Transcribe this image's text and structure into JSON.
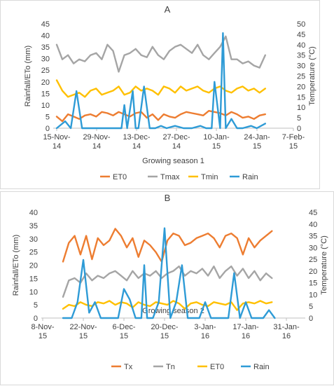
{
  "figure": {
    "panels": [
      {
        "label": "A"
      },
      {
        "label": "B"
      }
    ]
  },
  "chart_data": [
    {
      "panel": "A",
      "type": "line",
      "title": "",
      "xlabel": "Growing season 1",
      "ylabel": "Rainfall/ETo (mm)",
      "y2label": "Temperature (°C)",
      "x_ticks": [
        "15-Nov-14",
        "29-Nov-14",
        "13-Dec-14",
        "27-Dec-14",
        "10-Jan-15",
        "24-Jan-15",
        "7-Feb-15"
      ],
      "xlim": [
        "2014-11-08",
        "2015-02-14"
      ],
      "ylim": [
        0,
        45
      ],
      "y_ticks": [
        0,
        5,
        10,
        15,
        20,
        25,
        30,
        35,
        40,
        45
      ],
      "y2lim": [
        0,
        50
      ],
      "y2_ticks": [
        0,
        5,
        10,
        15,
        20,
        25,
        30,
        35,
        40,
        45,
        50
      ],
      "grid": false,
      "legend": "bottom",
      "series": [
        {
          "name": "ET0",
          "axis": "left",
          "color": "#ED7D31",
          "x": [
            "2014-11-15",
            "2014-11-17",
            "2014-11-19",
            "2014-11-21",
            "2014-11-23",
            "2014-11-25",
            "2014-11-27",
            "2014-11-29",
            "2014-12-01",
            "2014-12-03",
            "2014-12-05",
            "2014-12-07",
            "2014-12-09",
            "2014-12-11",
            "2014-12-13",
            "2014-12-15",
            "2014-12-17",
            "2014-12-19",
            "2014-12-21",
            "2014-12-23",
            "2014-12-25",
            "2014-12-27",
            "2014-12-29",
            "2014-12-31",
            "2015-01-02",
            "2015-01-04",
            "2015-01-06",
            "2015-01-08",
            "2015-01-10",
            "2015-01-12",
            "2015-01-14",
            "2015-01-16",
            "2015-01-18",
            "2015-01-20",
            "2015-01-22",
            "2015-01-24",
            "2015-01-26",
            "2015-01-28"
          ],
          "values": [
            5.0,
            3.0,
            6.0,
            5.0,
            4.0,
            5.5,
            6.0,
            5.0,
            7.0,
            6.5,
            5.5,
            7.0,
            6.0,
            5.0,
            6.5,
            7.0,
            4.5,
            6.0,
            3.5,
            6.0,
            5.0,
            4.5,
            6.0,
            7.0,
            6.5,
            6.0,
            5.5,
            7.5,
            7.0,
            6.5,
            5.5,
            7.0,
            6.0,
            4.5,
            5.0,
            4.0,
            5.5,
            6.0
          ]
        },
        {
          "name": "Tmax",
          "axis": "right",
          "color": "#A5A5A5",
          "x": [
            "2014-11-15",
            "2014-11-17",
            "2014-11-19",
            "2014-11-21",
            "2014-11-23",
            "2014-11-25",
            "2014-11-27",
            "2014-11-29",
            "2014-12-01",
            "2014-12-03",
            "2014-12-05",
            "2014-12-07",
            "2014-12-09",
            "2014-12-11",
            "2014-12-13",
            "2014-12-15",
            "2014-12-17",
            "2014-12-19",
            "2014-12-21",
            "2014-12-23",
            "2014-12-25",
            "2014-12-27",
            "2014-12-29",
            "2014-12-31",
            "2015-01-02",
            "2015-01-04",
            "2015-01-06",
            "2015-01-08",
            "2015-01-10",
            "2015-01-12",
            "2015-01-14",
            "2015-01-16",
            "2015-01-18",
            "2015-01-20",
            "2015-01-22",
            "2015-01-24",
            "2015-01-26",
            "2015-01-28"
          ],
          "values": [
            40,
            33,
            35,
            31,
            33,
            32,
            35,
            36,
            33,
            40,
            37,
            27,
            35,
            36,
            38,
            35,
            34,
            39,
            35,
            33,
            37,
            39,
            40,
            38,
            36,
            40,
            35,
            33,
            36,
            39,
            44,
            33,
            33,
            31,
            32,
            30,
            29,
            35
          ]
        },
        {
          "name": "Tmin",
          "axis": "right",
          "color": "#FFC000",
          "x": [
            "2014-11-15",
            "2014-11-17",
            "2014-11-19",
            "2014-11-21",
            "2014-11-23",
            "2014-11-25",
            "2014-11-27",
            "2014-11-29",
            "2014-12-01",
            "2014-12-03",
            "2014-12-05",
            "2014-12-07",
            "2014-12-09",
            "2014-12-11",
            "2014-12-13",
            "2014-12-15",
            "2014-12-17",
            "2014-12-19",
            "2014-12-21",
            "2014-12-23",
            "2014-12-25",
            "2014-12-27",
            "2014-12-29",
            "2014-12-31",
            "2015-01-02",
            "2015-01-04",
            "2015-01-06",
            "2015-01-08",
            "2015-01-10",
            "2015-01-12",
            "2015-01-14",
            "2015-01-16",
            "2015-01-18",
            "2015-01-20",
            "2015-01-22",
            "2015-01-24",
            "2015-01-26",
            "2015-01-28"
          ],
          "values": [
            23,
            18,
            15,
            16,
            17,
            15,
            18,
            19,
            16,
            17,
            18,
            20,
            16,
            17,
            20,
            18,
            19,
            18,
            16,
            20,
            19,
            17,
            20,
            18,
            19,
            20,
            18,
            17,
            19,
            20,
            18,
            17,
            19,
            20,
            18,
            19,
            17,
            19
          ]
        },
        {
          "name": "Rain",
          "axis": "left",
          "color": "#2E9BD6",
          "x": [
            "2014-11-15",
            "2014-11-18",
            "2014-11-20",
            "2014-11-22",
            "2014-11-24",
            "2014-11-26",
            "2014-11-28",
            "2014-11-30",
            "2014-12-02",
            "2014-12-04",
            "2014-12-06",
            "2014-12-08",
            "2014-12-09",
            "2014-12-10",
            "2014-12-12",
            "2014-12-13",
            "2014-12-14",
            "2014-12-16",
            "2014-12-18",
            "2014-12-19",
            "2014-12-20",
            "2014-12-22",
            "2014-12-24",
            "2014-12-27",
            "2014-12-30",
            "2015-01-02",
            "2015-01-05",
            "2015-01-07",
            "2015-01-09",
            "2015-01-10",
            "2015-01-12",
            "2015-01-13",
            "2015-01-14",
            "2015-01-16",
            "2015-01-18",
            "2015-01-20",
            "2015-01-23",
            "2015-01-25",
            "2015-01-28"
          ],
          "values": [
            0,
            3,
            0,
            16,
            0,
            0,
            0,
            0,
            0,
            0,
            0,
            0,
            10,
            0,
            16,
            0,
            0,
            18,
            0,
            0,
            0,
            1,
            0,
            1,
            0,
            0,
            1,
            0,
            0,
            20,
            0,
            41,
            0,
            4,
            0,
            0,
            1,
            0,
            2
          ]
        }
      ]
    },
    {
      "panel": "B",
      "type": "line",
      "title": "",
      "xlabel": "Growing season 2",
      "ylabel": "Rainfall/ETo (mm)",
      "y2label": "Temperature (°C)",
      "x_ticks": [
        "8-Nov-15",
        "22-Nov-15",
        "6-Dec-15",
        "20-Dec-15",
        "3-Jan-16",
        "17-Jan-16",
        "31-Jan-16"
      ],
      "xlim": [
        "2015-11-01",
        "2016-02-07"
      ],
      "ylim": [
        0,
        40
      ],
      "y_ticks": [
        0,
        5,
        10,
        15,
        20,
        25,
        30,
        35,
        40
      ],
      "y2lim": [
        0,
        45
      ],
      "y2_ticks": [
        0,
        5,
        10,
        15,
        20,
        25,
        30,
        35,
        40,
        45
      ],
      "grid": false,
      "legend": "bottom",
      "series": [
        {
          "name": "Tx",
          "axis": "right",
          "color": "#ED7D31",
          "x": [
            "2015-11-15",
            "2015-11-17",
            "2015-11-19",
            "2015-11-21",
            "2015-11-23",
            "2015-11-25",
            "2015-11-27",
            "2015-11-29",
            "2015-12-01",
            "2015-12-03",
            "2015-12-05",
            "2015-12-07",
            "2015-12-09",
            "2015-12-11",
            "2015-12-13",
            "2015-12-15",
            "2015-12-17",
            "2015-12-19",
            "2015-12-21",
            "2015-12-23",
            "2015-12-25",
            "2015-12-27",
            "2015-12-29",
            "2015-12-31",
            "2016-01-02",
            "2016-01-04",
            "2016-01-06",
            "2016-01-08",
            "2016-01-10",
            "2016-01-12",
            "2016-01-14",
            "2016-01-16",
            "2016-01-18",
            "2016-01-20",
            "2016-01-22",
            "2016-01-24",
            "2016-01-26"
          ],
          "values": [
            24,
            32,
            35,
            27,
            35,
            25,
            34,
            31,
            33,
            38,
            35,
            30,
            34,
            26,
            33,
            31,
            28,
            24,
            33,
            36,
            35,
            31,
            32,
            34,
            35,
            36,
            34,
            30,
            35,
            36,
            34,
            27,
            34,
            30,
            33,
            35,
            37
          ]
        },
        {
          "name": "Tn",
          "axis": "right",
          "color": "#A5A5A5",
          "x": [
            "2015-11-15",
            "2015-11-17",
            "2015-11-19",
            "2015-11-21",
            "2015-11-23",
            "2015-11-25",
            "2015-11-27",
            "2015-11-29",
            "2015-12-01",
            "2015-12-03",
            "2015-12-05",
            "2015-12-07",
            "2015-12-09",
            "2015-12-11",
            "2015-12-13",
            "2015-12-15",
            "2015-12-17",
            "2015-12-19",
            "2015-12-21",
            "2015-12-23",
            "2015-12-25",
            "2015-12-27",
            "2015-12-29",
            "2015-12-31",
            "2016-01-02",
            "2016-01-04",
            "2016-01-06",
            "2016-01-08",
            "2016-01-10",
            "2016-01-12",
            "2016-01-14",
            "2016-01-16",
            "2016-01-18",
            "2016-01-20",
            "2016-01-22",
            "2016-01-24",
            "2016-01-26"
          ],
          "values": [
            9,
            16,
            17,
            15,
            19,
            16,
            18,
            17,
            19,
            20,
            18,
            16,
            20,
            17,
            19,
            18,
            20,
            17,
            19,
            20,
            22,
            18,
            20,
            19,
            21,
            18,
            22,
            17,
            20,
            22,
            18,
            21,
            17,
            20,
            16,
            19,
            17
          ]
        },
        {
          "name": "ET0",
          "axis": "left",
          "color": "#FFC000",
          "x": [
            "2015-11-15",
            "2015-11-17",
            "2015-11-19",
            "2015-11-21",
            "2015-11-23",
            "2015-11-25",
            "2015-11-27",
            "2015-11-29",
            "2015-12-01",
            "2015-12-03",
            "2015-12-05",
            "2015-12-07",
            "2015-12-09",
            "2015-12-11",
            "2015-12-13",
            "2015-12-15",
            "2015-12-17",
            "2015-12-19",
            "2015-12-21",
            "2015-12-23",
            "2015-12-25",
            "2015-12-27",
            "2015-12-29",
            "2015-12-31",
            "2016-01-02",
            "2016-01-04",
            "2016-01-06",
            "2016-01-08",
            "2016-01-10",
            "2016-01-12",
            "2016-01-14",
            "2016-01-16",
            "2016-01-18",
            "2016-01-20",
            "2016-01-22",
            "2016-01-24",
            "2016-01-26"
          ],
          "values": [
            3.5,
            5.0,
            4.5,
            6.0,
            5.0,
            4.5,
            6.0,
            5.5,
            6.5,
            5.0,
            6.0,
            5.5,
            4.0,
            6.0,
            5.0,
            4.5,
            6.0,
            5.5,
            5.0,
            6.5,
            5.5,
            3.5,
            5.5,
            6.0,
            5.0,
            4.5,
            6.0,
            5.5,
            5.0,
            6.0,
            3.0,
            5.5,
            6.0,
            5.5,
            6.5,
            5.5,
            6.0
          ]
        },
        {
          "name": "Rain",
          "axis": "left",
          "color": "#2E9BD6",
          "x": [
            "2015-11-15",
            "2015-11-18",
            "2015-11-20",
            "2015-11-22",
            "2015-11-24",
            "2015-11-26",
            "2015-11-28",
            "2015-11-30",
            "2015-12-02",
            "2015-12-04",
            "2015-12-06",
            "2015-12-08",
            "2015-12-10",
            "2015-12-12",
            "2015-12-13",
            "2015-12-14",
            "2015-12-16",
            "2015-12-18",
            "2015-12-20",
            "2015-12-22",
            "2015-12-24",
            "2015-12-26",
            "2015-12-28",
            "2015-12-30",
            "2016-01-01",
            "2016-01-03",
            "2016-01-05",
            "2016-01-07",
            "2016-01-09",
            "2016-01-11",
            "2016-01-13",
            "2016-01-15",
            "2016-01-17",
            "2016-01-19",
            "2016-01-21",
            "2016-01-23",
            "2016-01-25",
            "2016-01-27"
          ],
          "values": [
            0,
            0,
            6,
            22,
            2,
            6,
            0,
            0,
            0,
            0,
            11,
            7,
            0,
            0,
            20,
            0,
            0,
            6,
            34,
            0,
            6,
            20,
            0,
            0,
            0,
            6,
            0,
            0,
            0,
            0,
            17,
            0,
            6,
            0,
            0,
            0,
            3,
            0
          ]
        }
      ]
    }
  ]
}
